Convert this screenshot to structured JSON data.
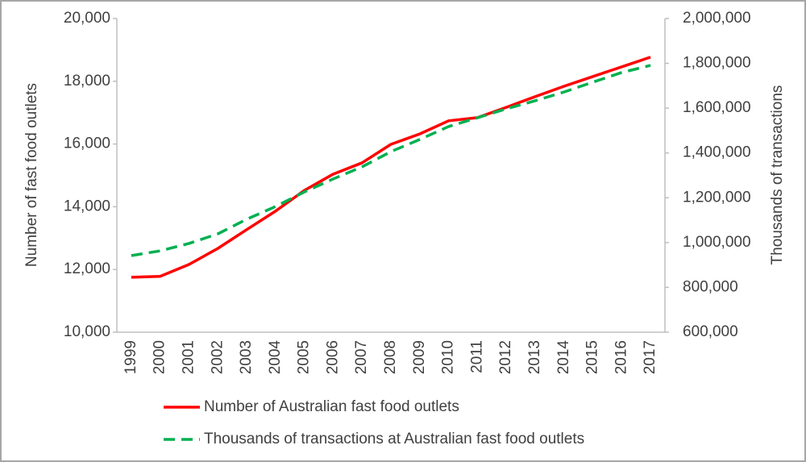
{
  "chart_data": {
    "type": "line",
    "categories": [
      "1999",
      "2000",
      "2001",
      "2002",
      "2003",
      "2004",
      "2005",
      "2006",
      "2007",
      "2008",
      "2009",
      "2010",
      "2011",
      "2012",
      "2013",
      "2014",
      "2015",
      "2016",
      "2017"
    ],
    "series": [
      {
        "name": "Number of Australian fast food outlets",
        "color": "#ff0000",
        "dash": "solid",
        "values": [
          11750,
          11780,
          12160,
          12670,
          13270,
          13860,
          14520,
          15040,
          15400,
          15990,
          16320,
          16740,
          16840,
          17170,
          17510,
          17840,
          18150,
          18460,
          18770
        ]
      },
      {
        "name": "Thousands of transactions at Australian fast food outlets",
        "color": "#00b050",
        "dash": "dashed",
        "axis": "y2",
        "values": [
          942000,
          963000,
          996000,
          1039000,
          1104000,
          1161000,
          1226000,
          1284000,
          1338000,
          1406000,
          1460000,
          1518000,
          1557000,
          1597000,
          1633000,
          1672000,
          1716000,
          1759000,
          1791000
        ]
      }
    ],
    "ylabel": "Number of fast food outlets",
    "y2label": "Thousands of transactions",
    "ylim": [
      10000,
      20000
    ],
    "yticks": [
      {
        "value": 10000,
        "label": "10,000"
      },
      {
        "value": 12000,
        "label": "12,000"
      },
      {
        "value": 14000,
        "label": "14,000"
      },
      {
        "value": 16000,
        "label": "16,000"
      },
      {
        "value": 18000,
        "label": "18,000"
      },
      {
        "value": 20000,
        "label": "20,000"
      }
    ],
    "y2lim": [
      600000,
      2000000
    ],
    "y2ticks": [
      {
        "value": 600000,
        "label": "600,000"
      },
      {
        "value": 800000,
        "label": "800,000"
      },
      {
        "value": 1000000,
        "label": "1,000,000"
      },
      {
        "value": 1200000,
        "label": "1,200,000"
      },
      {
        "value": 1400000,
        "label": "1,400,000"
      },
      {
        "value": 1600000,
        "label": "1,600,000"
      },
      {
        "value": 1800000,
        "label": "1,800,000"
      },
      {
        "value": 2000000,
        "label": "2,000,000"
      }
    ],
    "legend": "bottom"
  }
}
